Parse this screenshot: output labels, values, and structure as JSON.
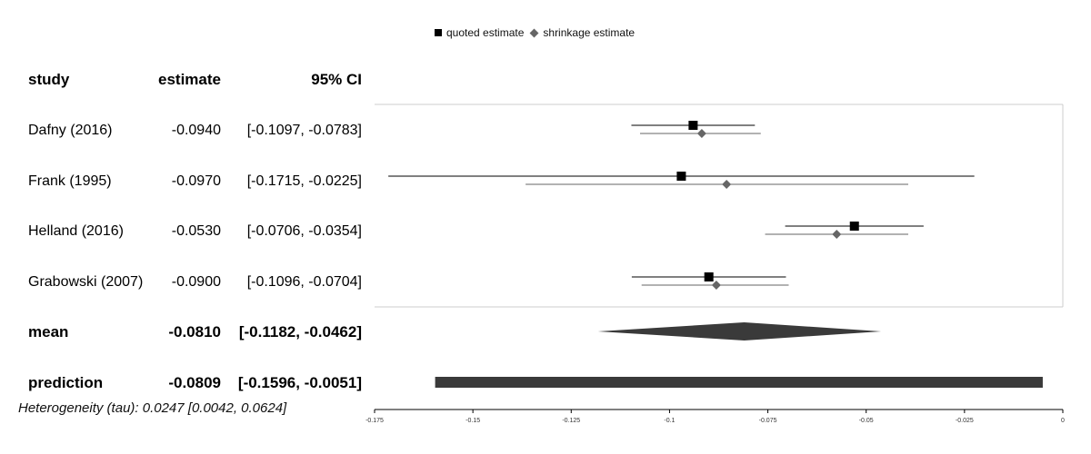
{
  "legend": {
    "quoted": "quoted estimate",
    "shrinkage": "shrinkage estimate"
  },
  "headers": {
    "study": "study",
    "estimate": "estimate",
    "ci": "95% CI"
  },
  "studies": [
    {
      "name": "Dafny (2016)",
      "estimate": "-0.0940",
      "ci": "[-0.1097, -0.0783]"
    },
    {
      "name": "Frank (1995)",
      "estimate": "-0.0970",
      "ci": "[-0.1715, -0.0225]"
    },
    {
      "name": "Helland (2016)",
      "estimate": "-0.0530",
      "ci": "[-0.0706, -0.0354]"
    },
    {
      "name": "Grabowski (2007)",
      "estimate": "-0.0900",
      "ci": "[-0.1096, -0.0704]"
    }
  ],
  "mean": {
    "label": "mean",
    "estimate": "-0.0810",
    "ci": "[-0.1182, -0.0462]"
  },
  "prediction": {
    "label": "prediction",
    "estimate": "-0.0809",
    "ci": "[-0.1596, -0.0051]"
  },
  "heterogeneity": "Heterogeneity (tau): 0.0247 [0.0042, 0.0624]",
  "colors": {
    "quoted": "#000000",
    "shrinkage": "#666666",
    "summary": "#3a3a3a",
    "frame": "#cccccc"
  },
  "chart_data": {
    "type": "forest",
    "xlim": [
      -0.175,
      0
    ],
    "x_ticks": [
      "-0.175",
      "-0.15",
      "-0.125",
      "-0.1",
      "-0.075",
      "-0.05",
      "-0.025",
      "0"
    ],
    "x_tick_values": [
      -0.175,
      -0.15,
      -0.125,
      -0.1,
      -0.075,
      -0.05,
      -0.025,
      0
    ],
    "series": [
      {
        "name": "quoted estimate",
        "points": [
          {
            "study": "Dafny (2016)",
            "value": -0.094,
            "lower": -0.1097,
            "upper": -0.0783
          },
          {
            "study": "Frank (1995)",
            "value": -0.097,
            "lower": -0.1715,
            "upper": -0.0225
          },
          {
            "study": "Helland (2016)",
            "value": -0.053,
            "lower": -0.0706,
            "upper": -0.0354
          },
          {
            "study": "Grabowski (2007)",
            "value": -0.09,
            "lower": -0.1096,
            "upper": -0.0704
          }
        ]
      },
      {
        "name": "shrinkage estimate",
        "points": [
          {
            "study": "Dafny (2016)",
            "value": -0.0918,
            "lower": -0.1075,
            "upper": -0.0768
          },
          {
            "study": "Frank (1995)",
            "value": -0.0855,
            "lower": -0.1366,
            "upper": -0.0393
          },
          {
            "study": "Helland (2016)",
            "value": -0.0575,
            "lower": -0.0757,
            "upper": -0.0393
          },
          {
            "study": "Grabowski (2007)",
            "value": -0.0881,
            "lower": -0.1071,
            "upper": -0.0697
          }
        ]
      }
    ],
    "summary": {
      "value": -0.081,
      "lower": -0.1182,
      "upper": -0.0462
    },
    "prediction": {
      "value": -0.0809,
      "lower": -0.1596,
      "upper": -0.0051
    }
  }
}
